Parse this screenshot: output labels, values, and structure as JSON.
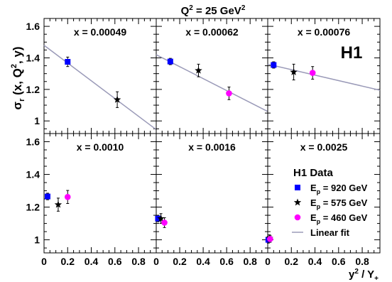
{
  "header": {
    "main": "Q",
    "sup": "2",
    "rest": " = 25 GeV",
    "sup2": "2"
  },
  "yaxis": {
    "sigma": "σ",
    "sub": "r",
    "rest1": " (x, Q",
    "sup": "2",
    "rest2": ", y)"
  },
  "xaxis": {
    "main": "y",
    "sup": "2",
    "mid": " / Y",
    "sub": "+"
  },
  "h1_label": "H1",
  "legend": {
    "title": "H1 Data",
    "entries": [
      {
        "prefix": "E",
        "sub": "p",
        "rest": " = 920 GeV",
        "marker": "square",
        "color": "#0000ff"
      },
      {
        "prefix": "E",
        "sub": "p",
        "rest": " = 575 GeV",
        "marker": "star",
        "color": "#000000"
      },
      {
        "prefix": "E",
        "sub": "p",
        "rest": " = 460 GeV",
        "marker": "circle",
        "color": "#ff00ff"
      },
      {
        "prefix": "",
        "sub": "",
        "rest": "Linear fit",
        "marker": "line",
        "color": "#9a9ab8"
      }
    ]
  },
  "colors": {
    "e920": "#0000ff",
    "e575": "#000000",
    "e460": "#ff00ff",
    "fit": "#9a9ab8"
  },
  "chart_data": {
    "type": "scatter",
    "xlim": [
      0,
      0.95
    ],
    "ylim": [
      0.92,
      1.65
    ],
    "x_ticks": [
      "0",
      "0.2",
      "0.4",
      "0.6",
      "0.8"
    ],
    "x_tick_values": [
      0,
      0.2,
      0.4,
      0.6,
      0.8
    ],
    "y_ticks": [
      "1",
      "1.2",
      "1.4",
      "1.6"
    ],
    "y_tick_values": [
      1.0,
      1.2,
      1.4,
      1.6
    ],
    "panels": [
      {
        "label": "x =  0.00049",
        "fit": {
          "x": [
            0,
            0.95
          ],
          "y": [
            1.48,
            0.945
          ]
        },
        "points": [
          {
            "series": "920",
            "x": 0.2,
            "y": 1.375,
            "err": 0.03
          },
          {
            "series": "575",
            "x": 0.62,
            "y": 1.135,
            "err": 0.05
          }
        ]
      },
      {
        "label": "x =  0.00062",
        "fit": {
          "x": [
            0,
            0.95
          ],
          "y": [
            1.42,
            1.06
          ]
        },
        "points": [
          {
            "series": "920",
            "x": 0.12,
            "y": 1.377,
            "err": 0.02
          },
          {
            "series": "575",
            "x": 0.36,
            "y": 1.32,
            "err": 0.04
          },
          {
            "series": "460",
            "x": 0.62,
            "y": 1.175,
            "err": 0.04
          }
        ]
      },
      {
        "label": "x =  0.00076",
        "fit": {
          "x": [
            0,
            0.95
          ],
          "y": [
            1.36,
            1.195
          ]
        },
        "points": [
          {
            "series": "920",
            "x": 0.05,
            "y": 1.355,
            "err": 0.02
          },
          {
            "series": "575",
            "x": 0.22,
            "y": 1.31,
            "err": 0.05
          },
          {
            "series": "460",
            "x": 0.38,
            "y": 1.305,
            "err": 0.04
          }
        ]
      },
      {
        "label": "x =  0.0010",
        "fit": null,
        "points": [
          {
            "series": "920",
            "x": 0.03,
            "y": 1.265,
            "err": 0.02
          },
          {
            "series": "575",
            "x": 0.12,
            "y": 1.215,
            "err": 0.04
          },
          {
            "series": "460",
            "x": 0.2,
            "y": 1.262,
            "err": 0.04
          }
        ]
      },
      {
        "label": "x =  0.0016",
        "fit": null,
        "points": [
          {
            "series": "920",
            "x": 0.015,
            "y": 1.13,
            "err": 0.02
          },
          {
            "series": "575",
            "x": 0.04,
            "y": 1.13,
            "err": 0.03
          },
          {
            "series": "460",
            "x": 0.07,
            "y": 1.105,
            "err": 0.03
          }
        ]
      },
      {
        "label": "x =  0.0025",
        "fit": null,
        "points": [
          {
            "series": "920",
            "x": 0.005,
            "y": 1.0,
            "err": 0.02
          },
          {
            "series": "575",
            "x": 0.015,
            "y": 1.01,
            "err": 0.02
          },
          {
            "series": "460",
            "x": 0.02,
            "y": 1.005,
            "err": 0.02
          }
        ]
      }
    ]
  }
}
